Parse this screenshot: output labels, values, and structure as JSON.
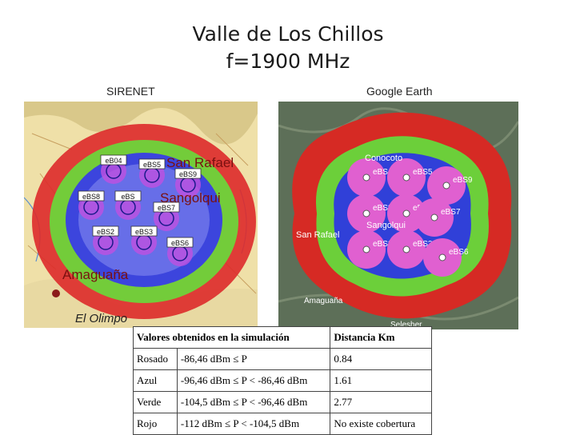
{
  "title": {
    "line1": "Valle de Los Chillos",
    "line2": "f=1900 MHz"
  },
  "captions": {
    "left": "SIRENET",
    "right": "Google Earth"
  },
  "sirenet_map": {
    "places": [
      "San Rafael",
      "Sangolqui",
      "Amaguaña",
      "El Olimpo"
    ],
    "stations": [
      "eB04",
      "eBS5",
      "eBS9",
      "eBS8",
      "eBS",
      "eBS7",
      "eBS2",
      "eBS3",
      "eBS6"
    ]
  },
  "google_map": {
    "places": [
      "Conocoto",
      "Sangolqui",
      "San Rafael",
      "Amaguaña",
      "Selesher"
    ],
    "stations": [
      "eBS4",
      "eBS5",
      "eBS9",
      "eBS8",
      "eBS",
      "eBS7",
      "eBS2",
      "eBS3",
      "eBS6"
    ]
  },
  "coverage_colors": {
    "rosado": "#e060d0",
    "azul": "#3344dd",
    "verde": "#66cc33",
    "rojo": "#dd2222"
  },
  "table": {
    "headers": [
      "Valores obtenidos en la simulación",
      "Distancia Km"
    ],
    "rows": [
      {
        "name": "Rosado",
        "range": "-86,46 dBm ≤ P",
        "distance": "0.84"
      },
      {
        "name": "Azul",
        "range": "-96,46 dBm ≤ P < -86,46 dBm",
        "distance": "1.61"
      },
      {
        "name": "Verde",
        "range": "-104,5 dBm ≤ P < -96,46 dBm",
        "distance": "2.77"
      },
      {
        "name": "Rojo",
        "range": "-112 dBm ≤ P < -104,5 dBm",
        "distance": "No existe cobertura"
      }
    ]
  }
}
